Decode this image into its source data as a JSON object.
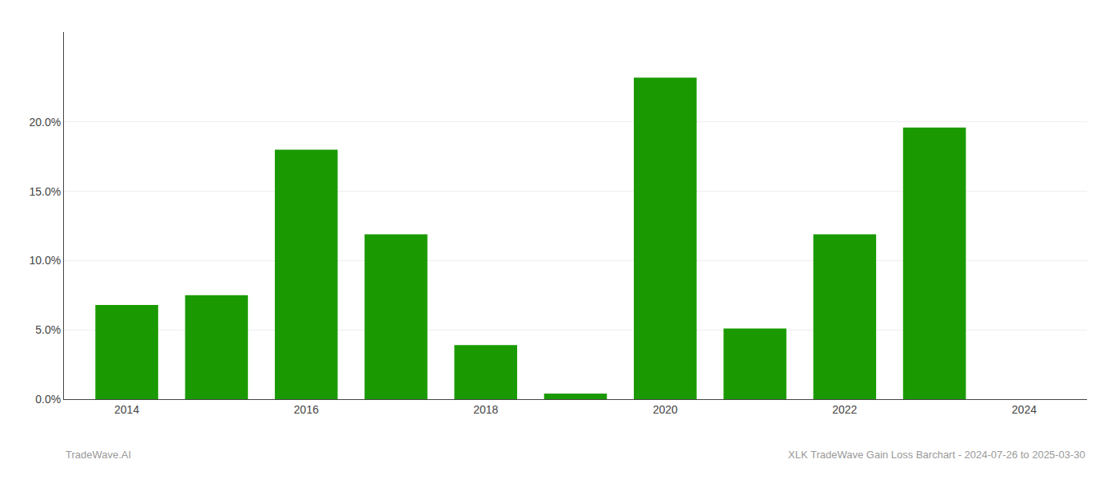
{
  "chart_data": {
    "type": "bar",
    "x": [
      2014,
      2015,
      2016,
      2017,
      2018,
      2019,
      2020,
      2021,
      2022,
      2023
    ],
    "values": [
      0.068,
      0.075,
      0.18,
      0.119,
      0.039,
      0.004,
      0.232,
      0.051,
      0.119,
      0.196
    ],
    "color": "#1a9a00",
    "xlim": [
      2013.3,
      2024.7
    ],
    "xticks": [
      2014,
      2016,
      2018,
      2020,
      2022,
      2024
    ],
    "ylim": [
      0,
      0.265
    ],
    "yticks": [
      {
        "value": 0.0,
        "label": "0.0%"
      },
      {
        "value": 0.05,
        "label": "5.0%"
      },
      {
        "value": 0.1,
        "label": "10.0%"
      },
      {
        "value": 0.15,
        "label": "15.0%"
      },
      {
        "value": 0.2,
        "label": "20.0%"
      }
    ],
    "grid": true,
    "annotations": [
      "TradeWave.AI",
      "XLK TradeWave Gain Loss Barchart - 2024-07-26 to 2025-03-30"
    ]
  }
}
